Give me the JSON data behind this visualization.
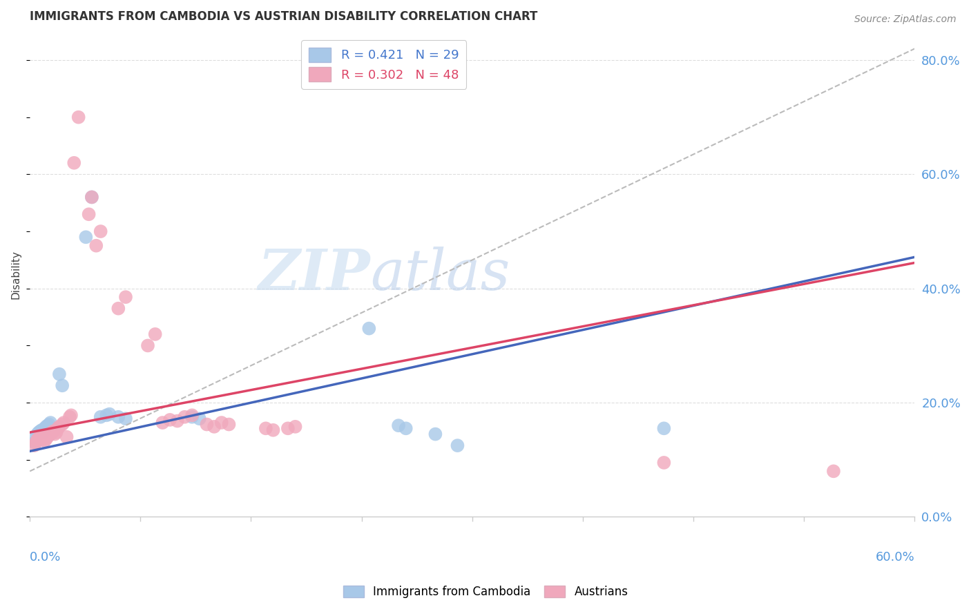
{
  "title": "IMMIGRANTS FROM CAMBODIA VS AUSTRIAN DISABILITY CORRELATION CHART",
  "source": "Source: ZipAtlas.com",
  "ylabel": "Disability",
  "xlim": [
    0.0,
    0.6
  ],
  "ylim": [
    0.0,
    0.85
  ],
  "right_yticks": [
    0.0,
    0.2,
    0.4,
    0.6,
    0.8
  ],
  "right_yticklabels": [
    "0.0%",
    "20.0%",
    "40.0%",
    "60.0%",
    "80.0%"
  ],
  "blue_color": "#A8C8E8",
  "pink_color": "#F0A8BC",
  "blue_line_color": "#4466BB",
  "pink_line_color": "#DD4466",
  "dashed_line_color": "#BBBBBB",
  "watermark_zip": "ZIP",
  "watermark_atlas": "atlas",
  "background_color": "#FFFFFF",
  "blue_points": [
    [
      0.003,
      0.13
    ],
    [
      0.004,
      0.14
    ],
    [
      0.005,
      0.145
    ],
    [
      0.006,
      0.148
    ],
    [
      0.007,
      0.15
    ],
    [
      0.008,
      0.152
    ],
    [
      0.009,
      0.148
    ],
    [
      0.01,
      0.155
    ],
    [
      0.011,
      0.158
    ],
    [
      0.012,
      0.16
    ],
    [
      0.013,
      0.162
    ],
    [
      0.014,
      0.165
    ],
    [
      0.02,
      0.25
    ],
    [
      0.022,
      0.23
    ],
    [
      0.038,
      0.49
    ],
    [
      0.042,
      0.56
    ],
    [
      0.048,
      0.175
    ],
    [
      0.052,
      0.178
    ],
    [
      0.054,
      0.18
    ],
    [
      0.06,
      0.175
    ],
    [
      0.065,
      0.172
    ],
    [
      0.11,
      0.175
    ],
    [
      0.115,
      0.172
    ],
    [
      0.23,
      0.33
    ],
    [
      0.25,
      0.16
    ],
    [
      0.255,
      0.155
    ],
    [
      0.275,
      0.145
    ],
    [
      0.29,
      0.125
    ],
    [
      0.43,
      0.155
    ]
  ],
  "pink_points": [
    [
      0.003,
      0.125
    ],
    [
      0.004,
      0.13
    ],
    [
      0.005,
      0.135
    ],
    [
      0.006,
      0.138
    ],
    [
      0.007,
      0.14
    ],
    [
      0.008,
      0.135
    ],
    [
      0.009,
      0.138
    ],
    [
      0.01,
      0.133
    ],
    [
      0.011,
      0.136
    ],
    [
      0.012,
      0.14
    ],
    [
      0.013,
      0.143
    ],
    [
      0.014,
      0.145
    ],
    [
      0.015,
      0.148
    ],
    [
      0.016,
      0.15
    ],
    [
      0.017,
      0.145
    ],
    [
      0.018,
      0.148
    ],
    [
      0.019,
      0.155
    ],
    [
      0.02,
      0.158
    ],
    [
      0.022,
      0.162
    ],
    [
      0.023,
      0.165
    ],
    [
      0.025,
      0.14
    ],
    [
      0.027,
      0.175
    ],
    [
      0.028,
      0.178
    ],
    [
      0.03,
      0.62
    ],
    [
      0.033,
      0.7
    ],
    [
      0.04,
      0.53
    ],
    [
      0.042,
      0.56
    ],
    [
      0.045,
      0.475
    ],
    [
      0.048,
      0.5
    ],
    [
      0.06,
      0.365
    ],
    [
      0.065,
      0.385
    ],
    [
      0.08,
      0.3
    ],
    [
      0.085,
      0.32
    ],
    [
      0.09,
      0.165
    ],
    [
      0.095,
      0.17
    ],
    [
      0.1,
      0.168
    ],
    [
      0.105,
      0.175
    ],
    [
      0.11,
      0.178
    ],
    [
      0.12,
      0.162
    ],
    [
      0.125,
      0.158
    ],
    [
      0.13,
      0.165
    ],
    [
      0.135,
      0.162
    ],
    [
      0.16,
      0.155
    ],
    [
      0.165,
      0.152
    ],
    [
      0.175,
      0.155
    ],
    [
      0.18,
      0.158
    ],
    [
      0.43,
      0.095
    ],
    [
      0.545,
      0.08
    ]
  ],
  "grid_yticks": [
    0.2,
    0.4,
    0.6,
    0.8
  ],
  "legend_blue_label": "R = 0.421   N = 29",
  "legend_pink_label": "R = 0.302   N = 48",
  "legend_blue_text_color": "#4477CC",
  "legend_pink_text_color": "#DD4466"
}
